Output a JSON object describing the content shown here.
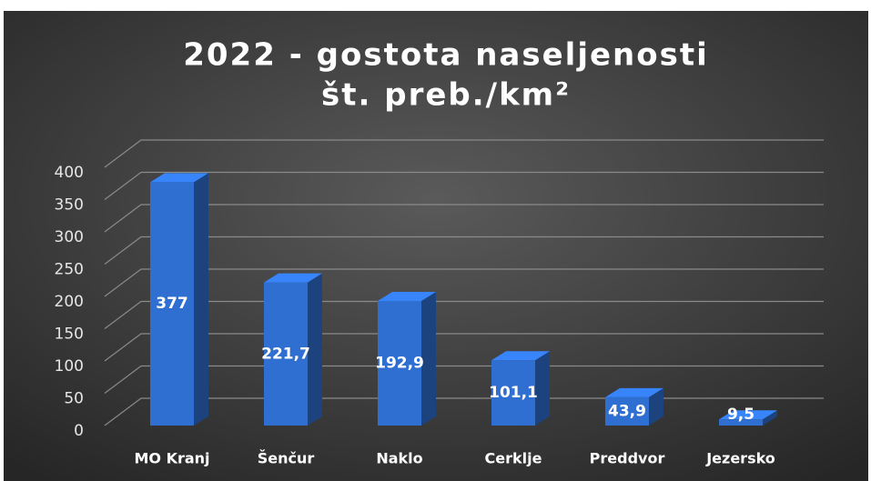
{
  "chart_data": {
    "type": "bar3d",
    "title": [
      "2022 - gostota naseljenosti",
      "št. preb./km²"
    ],
    "categories": [
      "MO Kranj",
      "Šenčur",
      "Naklo",
      "Cerklje",
      "Preddvor",
      "Jezersko"
    ],
    "values": [
      377,
      221.7,
      192.9,
      101.1,
      43.9,
      9.5
    ],
    "value_labels": [
      "377",
      "221,7",
      "192,9",
      "101,1",
      "43,9",
      "9,5"
    ],
    "color": "#2f6fd1",
    "ylim": [
      0,
      400
    ],
    "yticks": [
      0,
      50,
      100,
      150,
      200,
      250,
      300,
      350,
      400
    ],
    "grid": true
  }
}
